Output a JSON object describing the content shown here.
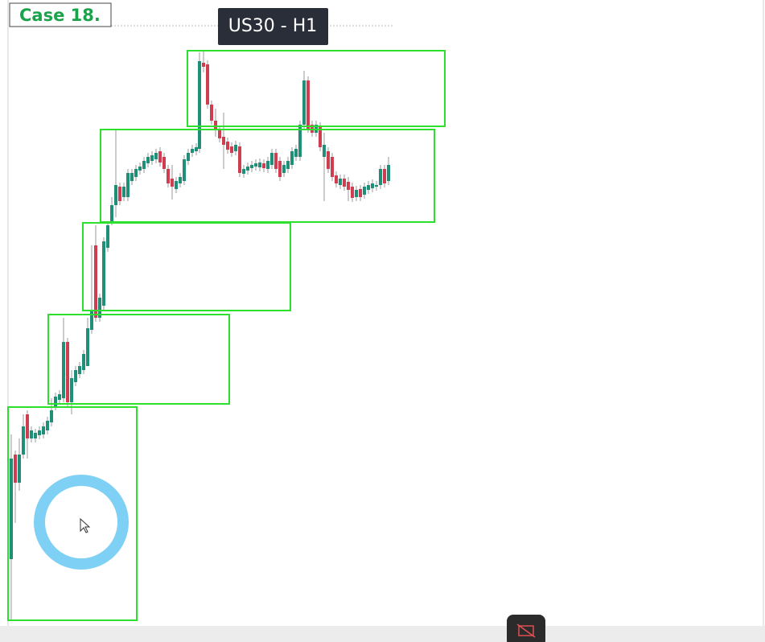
{
  "header": {
    "case_label": "Case 18.",
    "symbol_label": "US30 - H1"
  }
}
